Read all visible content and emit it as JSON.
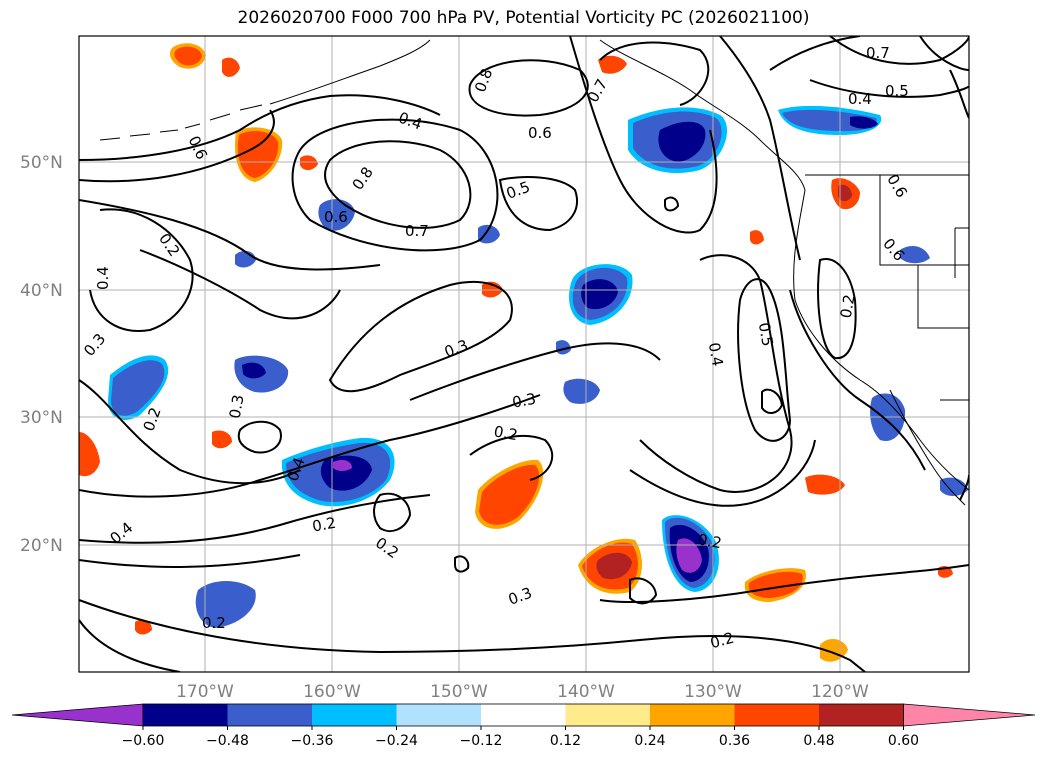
{
  "title": "2026020700 F000 700 hPa PV, Potential Vorticity PC (2026021100)",
  "latitude_labels": [
    "50°N",
    "40°N",
    "30°N",
    "20°N"
  ],
  "longitude_labels": [
    "170°W",
    "160°W",
    "150°W",
    "140°W",
    "130°W",
    "120°W"
  ],
  "contour_labels": [
    "0.7",
    "0.5",
    "0.4",
    "0.8",
    "0.7",
    "0.6",
    "0.4",
    "0.6",
    "0.8",
    "0.6",
    "0.7",
    "0.5",
    "0.6",
    "0.6",
    "0.2",
    "0.4",
    "0.3",
    "0.3",
    "0.5",
    "0.4",
    "0.2",
    "0.3",
    "0.3",
    "0.2",
    "0.2",
    "0.4",
    "0.4",
    "0.2",
    "0.2",
    "0.2",
    "0.3",
    "0.2",
    "0.2"
  ],
  "colorbar": {
    "tick_labels": [
      "−0.60",
      "−0.48",
      "−0.36",
      "−0.24",
      "−0.12",
      "0.12",
      "0.24",
      "0.36",
      "0.48",
      "0.60"
    ],
    "colors": [
      "#9932cc",
      "#00008b",
      "#3a5fcd",
      "#00bfff",
      "#b0e2ff",
      "#ffffff",
      "#ffeb8b",
      "#ffa500",
      "#ff4500",
      "#b22222",
      "#ff85a8"
    ]
  },
  "colors": {
    "neg_light": "#b0e2ff",
    "neg_1": "#00bfff",
    "neg_2": "#3a5fcd",
    "neg_3": "#00008b",
    "neg_4": "#9932cc",
    "pos_1": "#ffeb8b",
    "pos_2": "#ffa500",
    "pos_3": "#ff4500",
    "pos_4": "#b22222",
    "grid": "#b0b0b0"
  }
}
